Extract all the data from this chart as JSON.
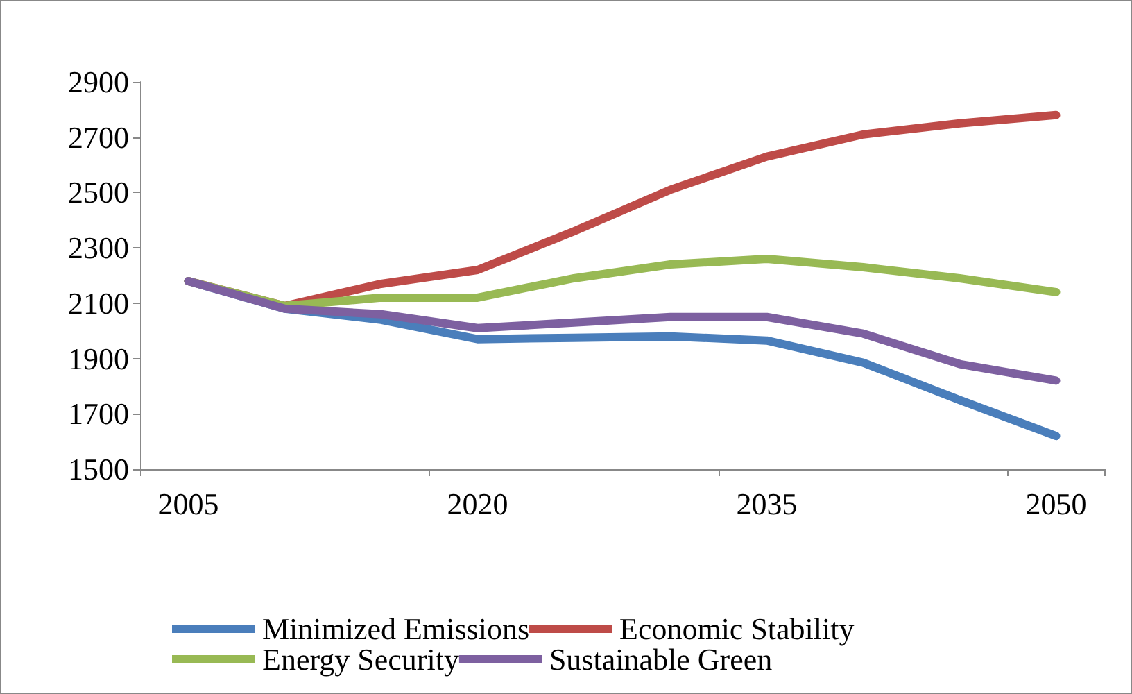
{
  "chart_data": {
    "type": "line",
    "categories": [
      "2005",
      null,
      null,
      "2020",
      null,
      null,
      "2035",
      null,
      null,
      "2050"
    ],
    "series": [
      {
        "name": "Minimized Emissions",
        "color": "#4a7ebb",
        "values": [
          2180,
          2080,
          2040,
          1970,
          1975,
          1980,
          1965,
          1885,
          1750,
          1620
        ]
      },
      {
        "name": "Economic Stability",
        "color": "#be4b48",
        "values": [
          2180,
          2090,
          2170,
          2220,
          2360,
          2510,
          2630,
          2710,
          2750,
          2780
        ]
      },
      {
        "name": "Energy Security",
        "color": "#98b954",
        "values": [
          2180,
          2090,
          2120,
          2120,
          2190,
          2240,
          2260,
          2230,
          2190,
          2140
        ]
      },
      {
        "name": "Sustainable Green",
        "color": "#7d60a0",
        "values": [
          2180,
          2080,
          2060,
          2010,
          2030,
          2050,
          2050,
          1990,
          1880,
          1820
        ]
      }
    ],
    "ylim": [
      1500,
      2900
    ],
    "yticks": [
      1500,
      1700,
      1900,
      2100,
      2300,
      2500,
      2700,
      2900
    ],
    "grid": false,
    "legend": "bottom",
    "marker": "none",
    "line_style": "solid"
  }
}
